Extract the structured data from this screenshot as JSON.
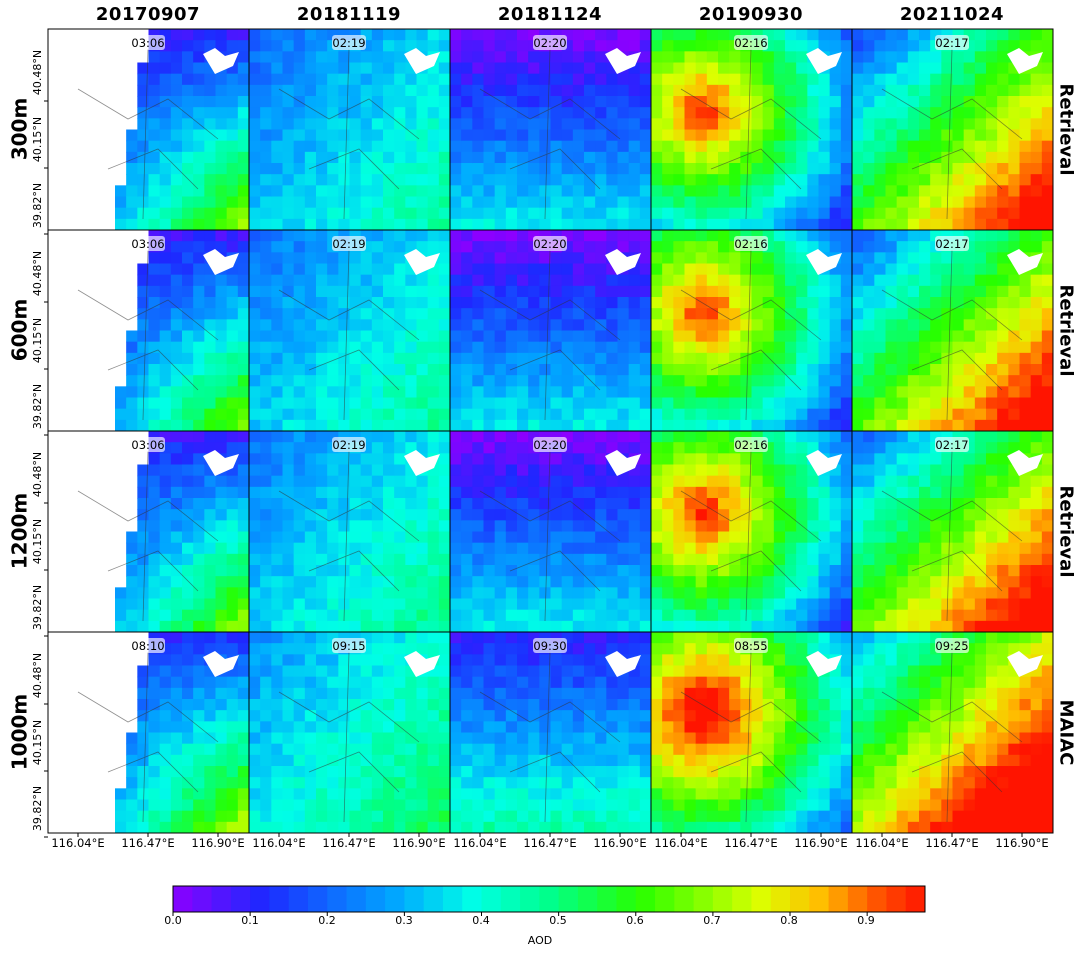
{
  "chart_data": {
    "type": "heatmap",
    "columns": [
      "20170907",
      "20181119",
      "20181124",
      "20190930",
      "20211024"
    ],
    "rows": [
      {
        "label": "300m",
        "type": "Retrieval",
        "times": [
          "03:06",
          "02:19",
          "02:20",
          "02:16",
          "02:17"
        ]
      },
      {
        "label": "600m",
        "type": "Retrieval",
        "times": [
          "03:06",
          "02:19",
          "02:20",
          "02:16",
          "02:17"
        ]
      },
      {
        "label": "1200m",
        "type": "Retrieval",
        "times": [
          "03:06",
          "02:19",
          "02:20",
          "02:16",
          "02:17"
        ]
      },
      {
        "label": "1000m",
        "type": "MAIAC",
        "times": [
          "08:10",
          "09:15",
          "09:30",
          "08:55",
          "09:25"
        ]
      }
    ],
    "lat_ticks": [
      "40.48°N",
      "40.15°N",
      "39.82°N"
    ],
    "lon_ticks": [
      "116.04°E",
      "116.47°E",
      "116.90°E"
    ],
    "colorbar": {
      "label": "AOD",
      "min": 0.0,
      "max": 0.975,
      "ticks": [
        "0.0",
        "0.1",
        "0.2",
        "0.3",
        "0.4",
        "0.5",
        "0.6",
        "0.7",
        "0.8",
        "0.9"
      ],
      "tick_values": [
        0.0,
        0.1,
        0.2,
        0.3,
        0.4,
        0.5,
        0.6,
        0.7,
        0.8,
        0.9
      ],
      "colormap": "gist_rainbow_r",
      "n_levels": 39
    },
    "approx_mean_aod": [
      [
        0.15,
        0.32,
        0.12,
        0.7,
        0.62
      ],
      [
        0.14,
        0.33,
        0.12,
        0.7,
        0.63
      ],
      [
        0.15,
        0.34,
        0.12,
        0.72,
        0.65
      ],
      [
        0.18,
        0.38,
        0.2,
        0.8,
        0.75
      ]
    ]
  }
}
